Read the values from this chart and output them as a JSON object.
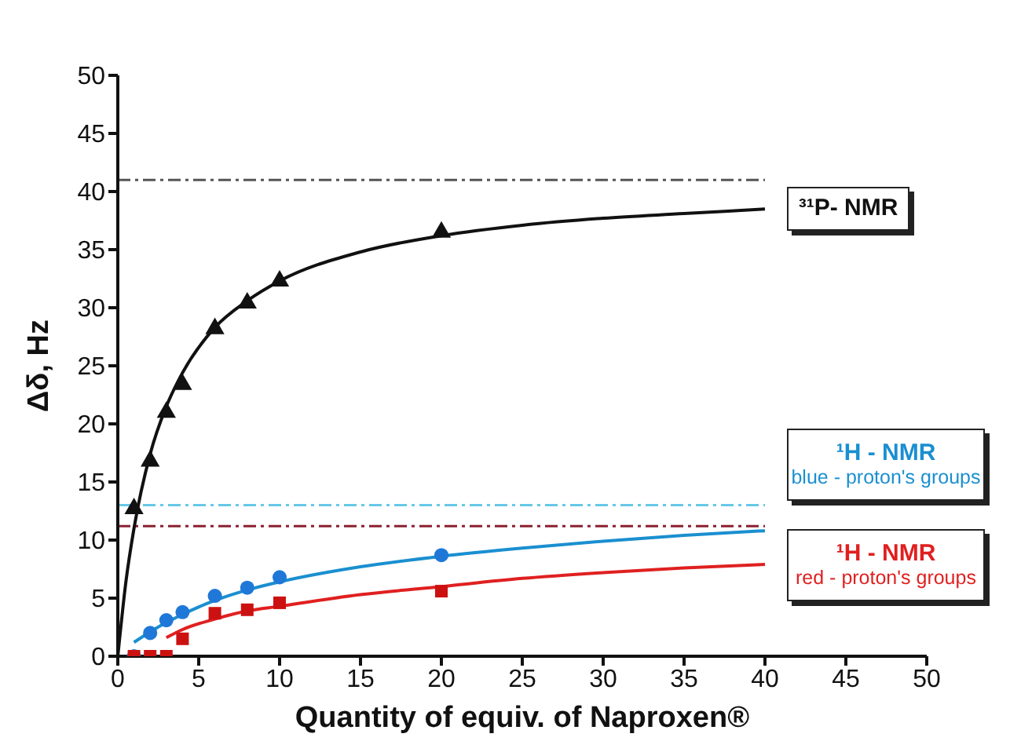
{
  "chart_data": {
    "type": "scatter",
    "xlabel": "Quantity of equiv. of Naproxen®",
    "ylabel": "Δδ, Hz",
    "xlim": [
      0,
      50
    ],
    "ylim": [
      0,
      50
    ],
    "xticks": [
      0,
      5,
      10,
      15,
      20,
      25,
      30,
      35,
      40,
      45,
      50
    ],
    "yticks": [
      0,
      5,
      10,
      15,
      20,
      25,
      30,
      35,
      40,
      45,
      50
    ],
    "grid": false,
    "series": [
      {
        "type": "line",
        "color": "#111111",
        "marker": "none",
        "x": [
          0,
          0.5,
          1,
          2,
          3,
          4,
          6,
          8,
          10,
          15,
          20,
          25,
          30,
          35,
          40
        ],
        "values": [
          0,
          6.4,
          11.0,
          17.4,
          21.5,
          24.4,
          28.3,
          30.6,
          32.3,
          34.8,
          36.2,
          37.1,
          37.7,
          38.1,
          38.5
        ]
      },
      {
        "type": "line",
        "color": "#1a8fd0",
        "marker": "none",
        "x": [
          1,
          2,
          3,
          4,
          6,
          8,
          10,
          15,
          20,
          25,
          30,
          35,
          40
        ],
        "values": [
          1.2,
          2.1,
          2.9,
          3.6,
          4.8,
          5.7,
          6.4,
          7.7,
          8.6,
          9.3,
          9.9,
          10.4,
          10.8
        ]
      },
      {
        "type": "line",
        "color": "#e02020",
        "marker": "none",
        "x": [
          3,
          4,
          6,
          8,
          10,
          15,
          20,
          25,
          30,
          35,
          40
        ],
        "values": [
          1.6,
          2.3,
          3.2,
          3.9,
          4.3,
          5.3,
          6.0,
          6.7,
          7.2,
          7.6,
          7.9
        ]
      },
      {
        "color": "#111111",
        "marker": "triangle",
        "x": [
          1,
          2,
          3,
          4,
          6,
          8,
          10,
          20
        ],
        "values": [
          12.7,
          16.8,
          21,
          23.4,
          28.2,
          30.4,
          32.3,
          36.5
        ]
      },
      {
        "color": "#1f78d8",
        "marker": "circle",
        "x": [
          1,
          2,
          3,
          4,
          6,
          8,
          10,
          20
        ],
        "values": [
          0,
          2.0,
          3.1,
          3.8,
          5.2,
          5.9,
          6.8,
          8.7
        ]
      },
      {
        "color": "#cc1111",
        "marker": "square",
        "x": [
          1,
          2,
          3,
          4,
          6,
          8,
          10,
          20
        ],
        "values": [
          0,
          0,
          0,
          1.5,
          3.7,
          4.0,
          4.6,
          5.6
        ]
      }
    ],
    "ref_lines": [
      {
        "axis": "y",
        "value": 41,
        "color": "#555555",
        "line_style": "dashed"
      },
      {
        "axis": "y",
        "value": 13,
        "color": "#66c8e8",
        "line_style": "dashed"
      },
      {
        "axis": "y",
        "value": 11.2,
        "color": "#8b2030",
        "line_style": "dashed"
      }
    ],
    "annotations": [
      "³¹P- NMR",
      "¹H - NMR\nblue - proton's groups",
      "¹H - NMR\nred - proton's groups"
    ]
  }
}
